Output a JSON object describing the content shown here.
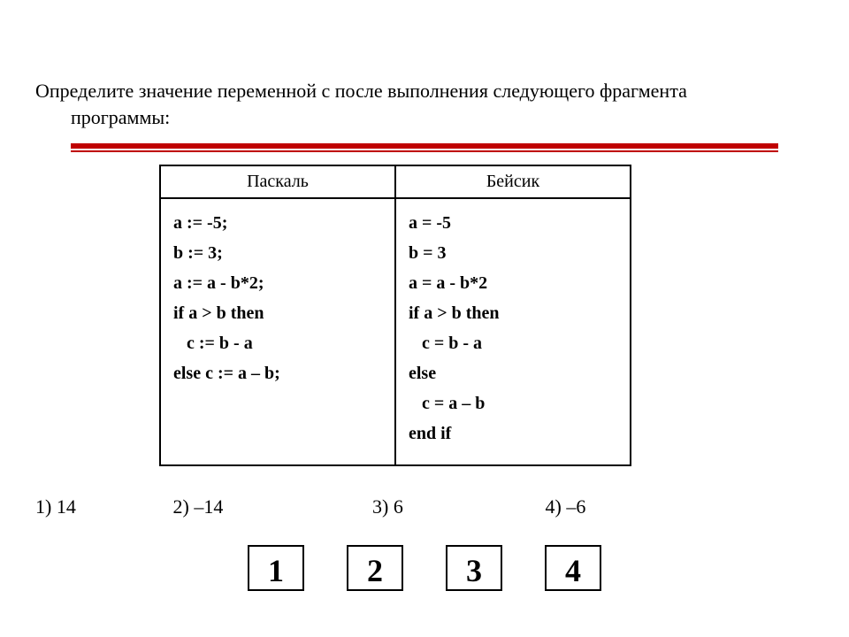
{
  "question": {
    "line1": "Определите значение переменной c после выполнения следующего фрагмента",
    "line2": "программы:"
  },
  "rule": {
    "color": "#c00000"
  },
  "table": {
    "headers": {
      "left": "Паскаль",
      "right": "Бейсик"
    },
    "pascal": [
      "a := -5;",
      "b := 3;",
      "a := a - b*2;",
      "if a > b then",
      "   c := b - a",
      "else c := a – b;"
    ],
    "basic": [
      "a = -5",
      "b = 3",
      "a = a - b*2",
      "if a > b then",
      "   c = b - a",
      "else",
      "   c = a – b",
      "end if"
    ]
  },
  "answers": {
    "a1": "1) 14",
    "a2": "2) –14",
    "a3": "3) 6",
    "a4": "4) –6"
  },
  "buttons": {
    "b1": "1",
    "b2": "2",
    "b3": "3",
    "b4": "4"
  }
}
